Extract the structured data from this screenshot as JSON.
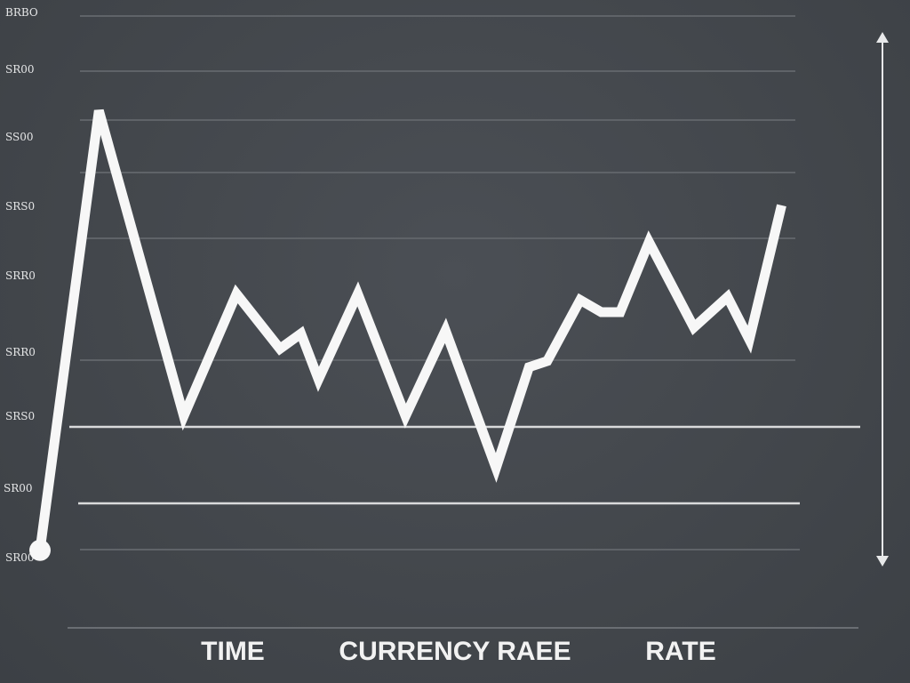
{
  "chart_data": {
    "type": "line",
    "x_labels": [
      "TIME",
      "CURRENCY RAEE",
      "RATE"
    ],
    "y_ticks": [
      "BRBO",
      "SR00",
      "SS00",
      "SRS0",
      "SRR0",
      "SRR0",
      "SRS0",
      "SR00",
      "SR00"
    ],
    "ylim": [
      0,
      9
    ],
    "xlim": [
      0,
      100
    ],
    "grid": true,
    "reference_lines_y": [
      3.05,
      1.55
    ],
    "series": [
      {
        "x": [
          0,
          8.4,
          20.5,
          28.0,
          34.2,
          37.2,
          39.7,
          45.3,
          52.1,
          57.8,
          65.0,
          69.7,
          72.3,
          77.0,
          80.0,
          82.7,
          86.8,
          93.2,
          98.0,
          101.1,
          105.7
        ],
        "y": [
          0.25,
          7.45,
          2.45,
          4.45,
          3.55,
          3.8,
          3.05,
          4.45,
          2.45,
          3.85,
          1.6,
          3.25,
          3.35,
          4.35,
          4.15,
          4.15,
          5.3,
          3.9,
          4.4,
          3.7,
          5.9
        ]
      }
    ],
    "right_axis": {
      "arrow_up": true,
      "arrow_down": true,
      "label": ""
    }
  },
  "colors": {
    "background": "#43474c",
    "line": "#f7f7f7",
    "grid": "#5f6368",
    "reference": "#d9dadb",
    "text": "#e6e7e8"
  }
}
